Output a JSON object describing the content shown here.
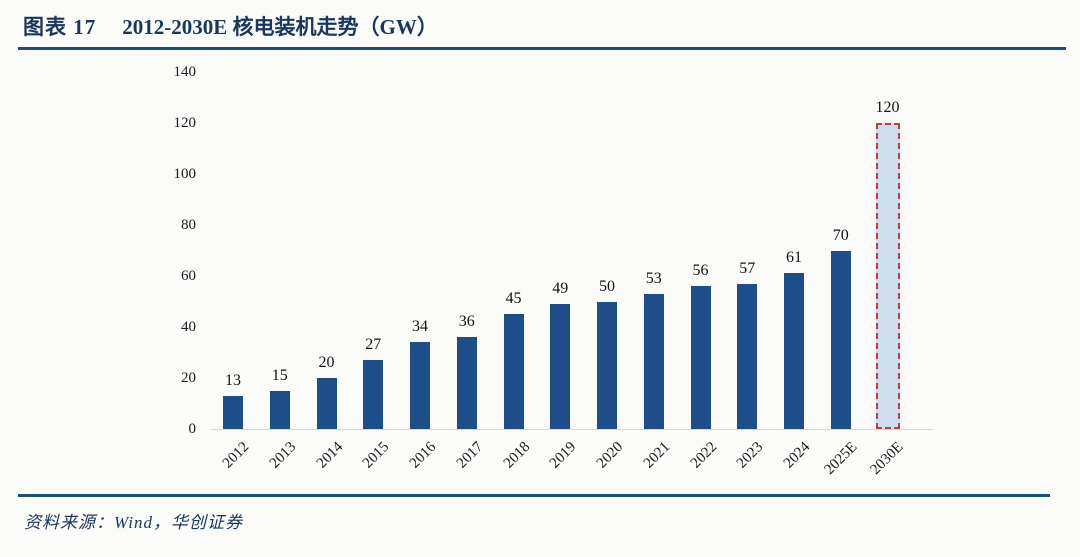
{
  "header": {
    "figure_label": "图表 17",
    "figure_title": "2012-2030E 核电装机走势（GW）"
  },
  "footer": {
    "source": "资料来源：Wind，华创证券"
  },
  "chart_data": {
    "type": "bar",
    "title": "2012-2030E 核电装机走势（GW）",
    "categories": [
      "2012",
      "2013",
      "2014",
      "2015",
      "2016",
      "2017",
      "2018",
      "2019",
      "2020",
      "2021",
      "2022",
      "2023",
      "2024",
      "2025E",
      "2030E"
    ],
    "values": [
      13,
      15,
      20,
      27,
      34,
      36,
      45,
      49,
      50,
      53,
      56,
      57,
      61,
      70,
      120
    ],
    "estimate_category": "2030E",
    "data_labels_shown": true,
    "yticks": [
      0,
      20,
      40,
      60,
      80,
      100,
      120,
      140
    ],
    "ylim": [
      0,
      140
    ],
    "xlabel": "",
    "ylabel": "",
    "grid": false,
    "legend": false,
    "colors": {
      "bar": "#1d4e89",
      "estimate_fill": "#cedcf0",
      "estimate_border": "#c2403c",
      "accent_rule": "#1f4e79",
      "title_text": "#17375e",
      "axis_baseline": "#d6d6d6",
      "label_text": "#111111"
    }
  }
}
